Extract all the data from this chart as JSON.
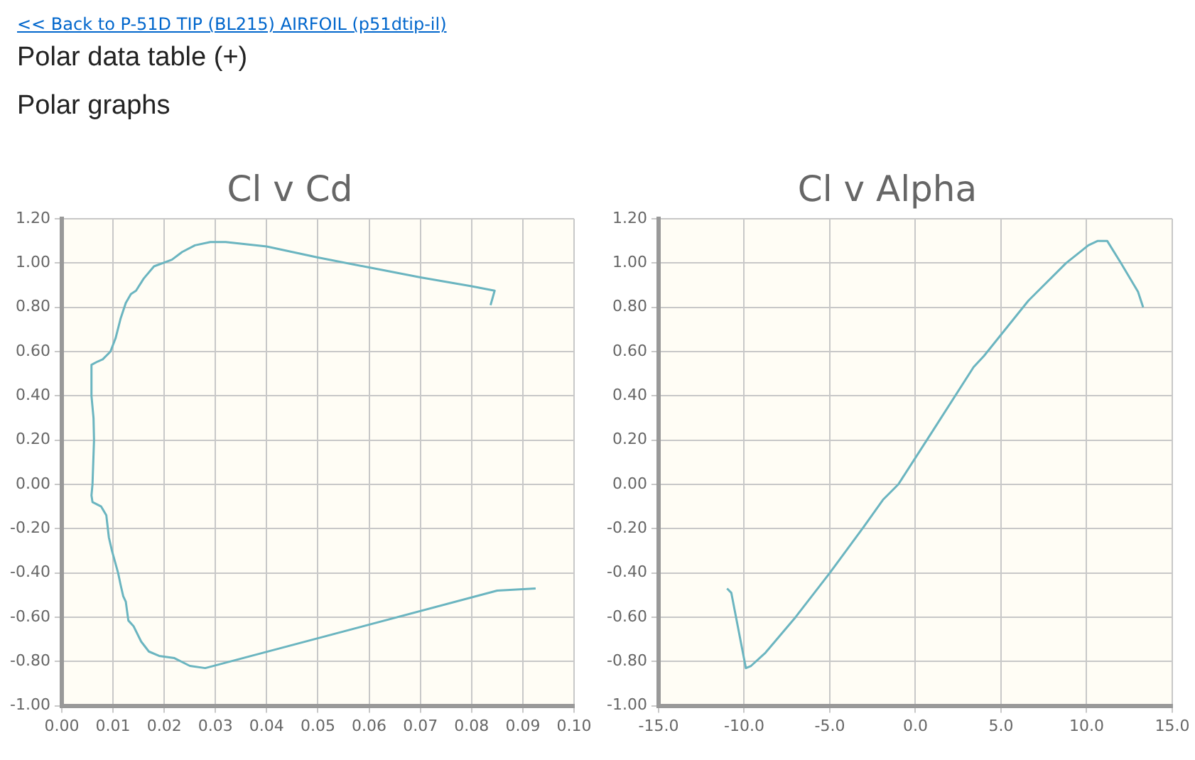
{
  "chart_data": [
    {
      "type": "line",
      "title": "Cl v Cd",
      "color": "#6bb5c0",
      "grid": true,
      "legend": false,
      "annotations": [
        "<< Back to P-51D TIP (BL215) AIRFOIL (p51dtip-il)",
        "Polar data table (+)",
        "Polar graphs"
      ],
      "x": [
        0.0925,
        0.085,
        0.028,
        0.025,
        0.022,
        0.019,
        0.017,
        0.0155,
        0.014,
        0.013,
        0.0125,
        0.012,
        0.0115,
        0.011,
        0.0098,
        0.0092,
        0.0087,
        0.0077,
        0.006,
        0.0058,
        0.006,
        0.0063,
        0.0062,
        0.0058,
        0.0058,
        0.007,
        0.008,
        0.0095,
        0.0105,
        0.0115,
        0.0125,
        0.0135,
        0.0145,
        0.016,
        0.018,
        0.0215,
        0.0235,
        0.026,
        0.029,
        0.032,
        0.04,
        0.05,
        0.06,
        0.07,
        0.08,
        0.0845,
        0.0837
      ],
      "values": [
        -0.47,
        -0.48,
        -0.83,
        -0.82,
        -0.785,
        -0.775,
        -0.755,
        -0.71,
        -0.64,
        -0.615,
        -0.53,
        -0.505,
        -0.455,
        -0.4,
        -0.3,
        -0.24,
        -0.14,
        -0.1,
        -0.08,
        -0.05,
        0.0,
        0.2,
        0.3,
        0.4,
        0.54,
        0.555,
        0.565,
        0.6,
        0.66,
        0.75,
        0.82,
        0.86,
        0.875,
        0.93,
        0.985,
        1.015,
        1.05,
        1.08,
        1.095,
        1.095,
        1.075,
        1.025,
        0.98,
        0.935,
        0.895,
        0.875,
        0.81
      ],
      "xlim": [
        0,
        0.1
      ],
      "xticks": [
        {
          "value": 0,
          "label": "0.00"
        },
        {
          "value": 0.01,
          "label": "0.01"
        },
        {
          "value": 0.02,
          "label": "0.02"
        },
        {
          "value": 0.03,
          "label": "0.03"
        },
        {
          "value": 0.04,
          "label": "0.04"
        },
        {
          "value": 0.05,
          "label": "0.05"
        },
        {
          "value": 0.06,
          "label": "0.06"
        },
        {
          "value": 0.07,
          "label": "0.07"
        },
        {
          "value": 0.08,
          "label": "0.08"
        },
        {
          "value": 0.09,
          "label": "0.09"
        },
        {
          "value": 0.1,
          "label": "0.10"
        }
      ],
      "ylim": [
        -1,
        1.2
      ],
      "yticks": [
        {
          "value": -1,
          "label": "-1.00"
        },
        {
          "value": -0.8,
          "label": "-0.80"
        },
        {
          "value": -0.6,
          "label": "-0.60"
        },
        {
          "value": -0.4,
          "label": "-0.40"
        },
        {
          "value": -0.2,
          "label": "-0.20"
        },
        {
          "value": 0,
          "label": "0.00"
        },
        {
          "value": 0.2,
          "label": "0.20"
        },
        {
          "value": 0.4,
          "label": "0.40"
        },
        {
          "value": 0.6,
          "label": "0.60"
        },
        {
          "value": 0.8,
          "label": "0.80"
        },
        {
          "value": 1,
          "label": "1.00"
        },
        {
          "value": 1.2,
          "label": "1.20"
        }
      ]
    },
    {
      "type": "line",
      "title": "Cl v Alpha",
      "color": "#6bb5c0",
      "grid": true,
      "legend": false,
      "x": [
        -11.0,
        -10.75,
        -9.9,
        -9.6,
        -8.75,
        -7,
        -5,
        -3,
        -1.9,
        -1,
        1,
        3.4,
        4.0,
        6.6,
        8.8,
        10.1,
        10.65,
        11.2,
        12.0,
        13.0,
        13.3
      ],
      "values": [
        -0.47,
        -0.49,
        -0.83,
        -0.82,
        -0.76,
        -0.6,
        -0.4,
        -0.19,
        -0.07,
        0.0,
        0.24,
        0.53,
        0.58,
        0.83,
        1.0,
        1.08,
        1.1,
        1.1,
        1.0,
        0.87,
        0.8
      ],
      "xlim": [
        -15,
        15
      ],
      "xticks": [
        {
          "value": -15,
          "label": "-15.0"
        },
        {
          "value": -10,
          "label": "-10.0"
        },
        {
          "value": -5,
          "label": "-5.0"
        },
        {
          "value": 0,
          "label": "0.0"
        },
        {
          "value": 5,
          "label": "5.0"
        },
        {
          "value": 10,
          "label": "10.0"
        },
        {
          "value": 15,
          "label": "15.0"
        }
      ],
      "ylim": [
        -1,
        1.2
      ],
      "yticks": [
        {
          "value": -1,
          "label": "-1.00"
        },
        {
          "value": -0.8,
          "label": "-0.80"
        },
        {
          "value": -0.6,
          "label": "-0.60"
        },
        {
          "value": -0.4,
          "label": "-0.40"
        },
        {
          "value": -0.2,
          "label": "-0.20"
        },
        {
          "value": 0,
          "label": "0.00"
        },
        {
          "value": 0.2,
          "label": "0.20"
        },
        {
          "value": 0.4,
          "label": "0.40"
        },
        {
          "value": 0.6,
          "label": "0.60"
        },
        {
          "value": 0.8,
          "label": "0.80"
        },
        {
          "value": 1,
          "label": "1.00"
        },
        {
          "value": 1.2,
          "label": "1.20"
        }
      ]
    }
  ]
}
